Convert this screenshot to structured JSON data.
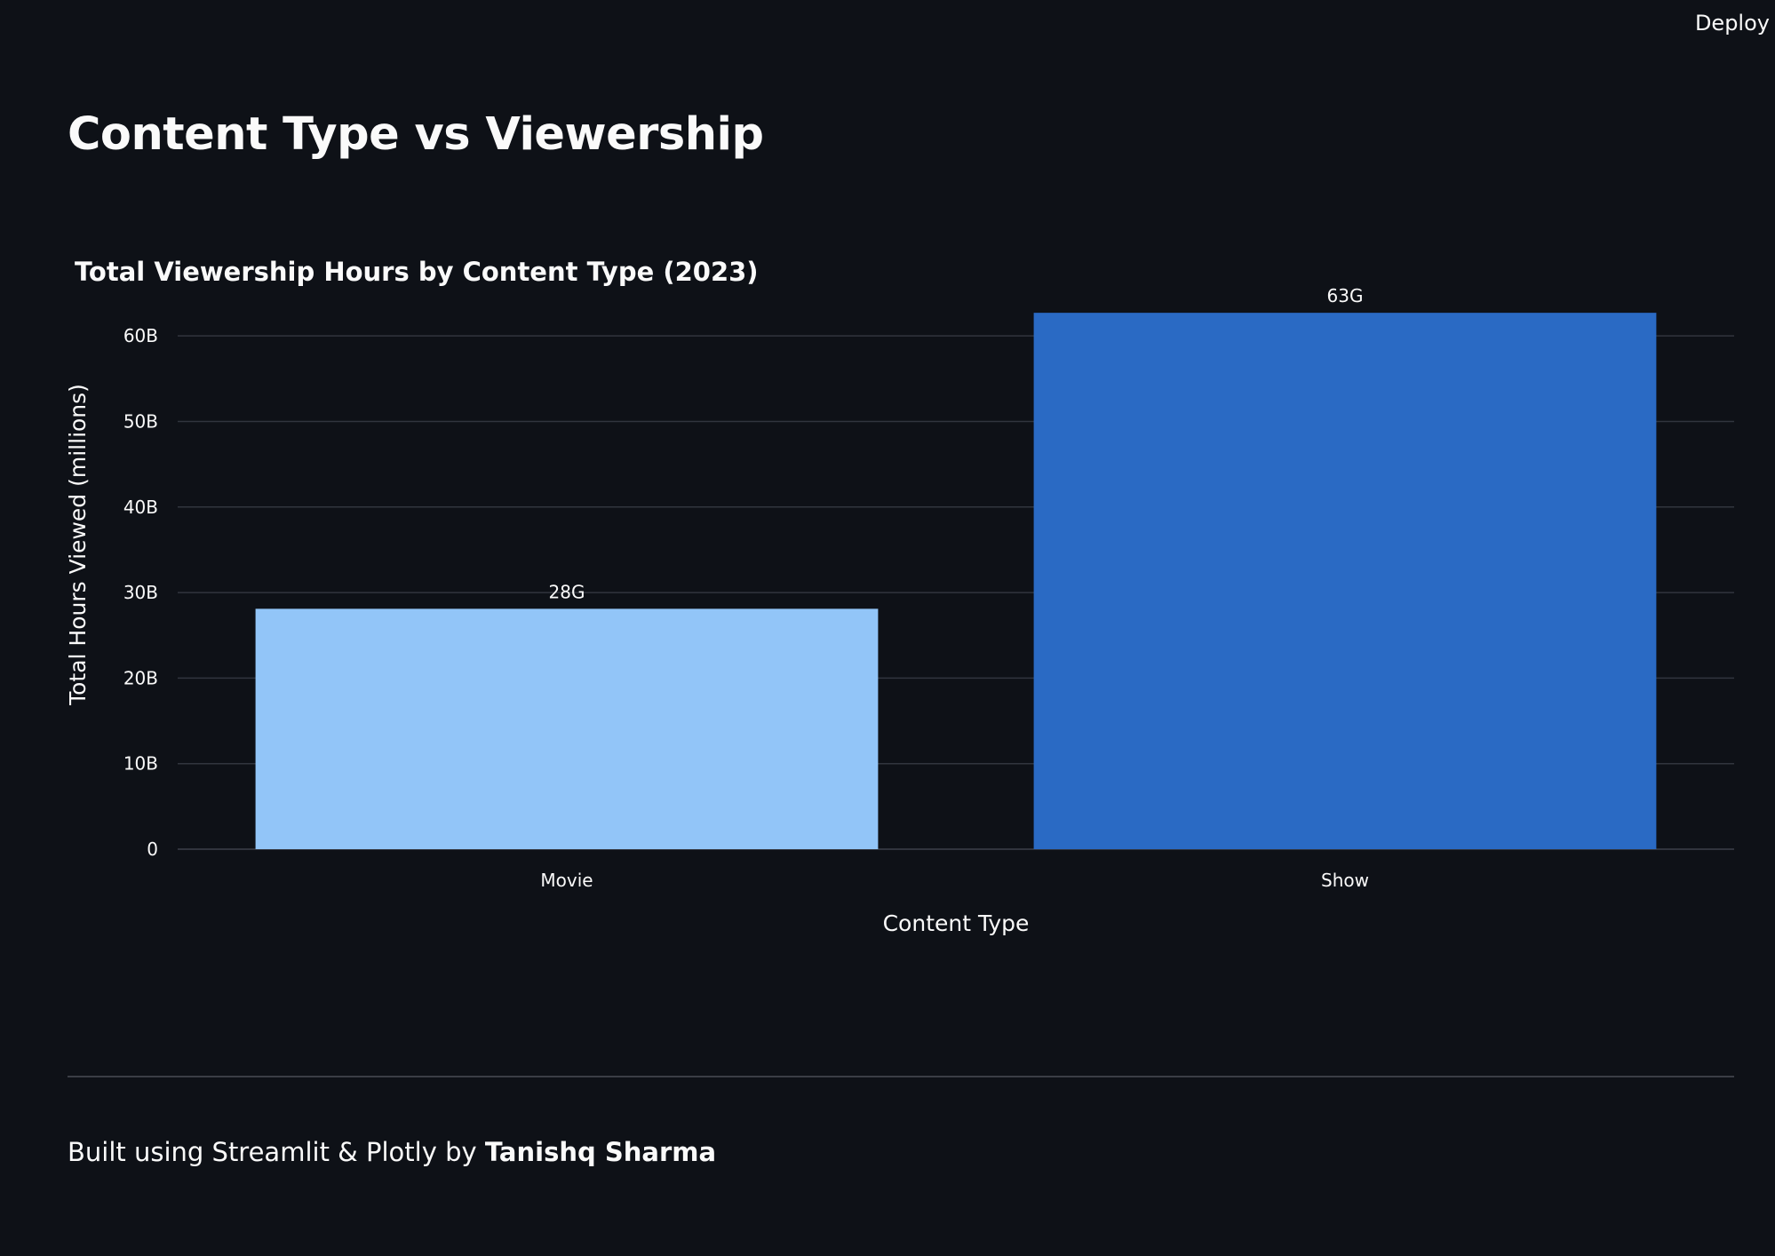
{
  "header": {
    "deploy_label": "Deploy"
  },
  "page": {
    "title": "Content Type vs Viewership"
  },
  "chart_data": {
    "type": "bar",
    "title": "Total Viewership Hours by Content Type (2023)",
    "xlabel": "Content Type",
    "ylabel": "Total Hours Viewed (millions)",
    "categories": [
      "Movie",
      "Show"
    ],
    "values": [
      28100000000,
      62700000000
    ],
    "data_labels": [
      "28G",
      "63G"
    ],
    "bar_colors": [
      "#92c5f8",
      "#2a6ac4"
    ],
    "ylim": [
      0,
      65000000000
    ],
    "yticks": [
      0,
      10000000000,
      20000000000,
      30000000000,
      40000000000,
      50000000000,
      60000000000
    ],
    "ytick_labels": [
      "0",
      "10B",
      "20B",
      "30B",
      "40B",
      "50B",
      "60B"
    ],
    "grid": true,
    "legend": false
  },
  "footer": {
    "prefix": "Built using Streamlit & Plotly by ",
    "author": "Tanishq Sharma"
  },
  "theme": {
    "background": "#0e1117",
    "text": "#fafafa",
    "grid": "#31353e"
  }
}
